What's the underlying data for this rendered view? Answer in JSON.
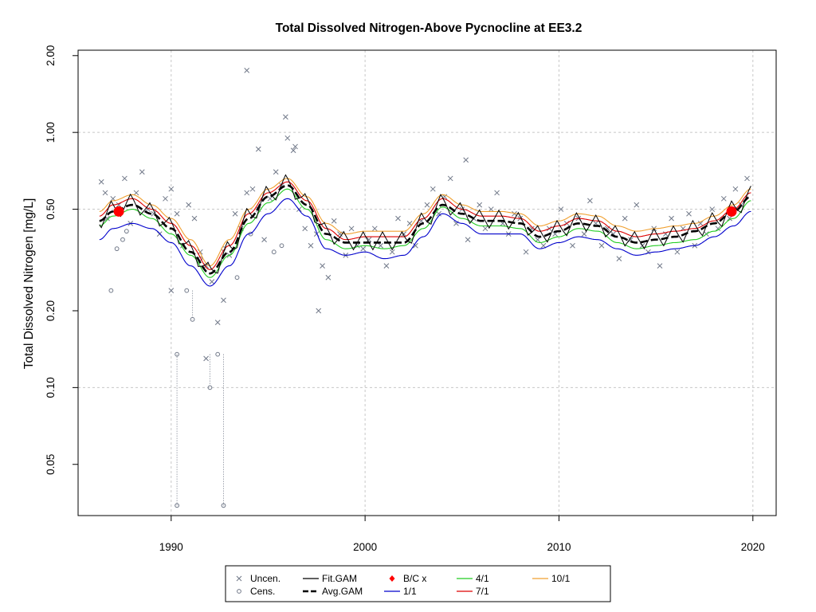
{
  "chart_data": {
    "type": "line",
    "title": "Total Dissolved Nitrogen-Above Pycnocline at EE3.2",
    "ylabel": "Total Dissolved Nitrogen [mg/L]",
    "xlabel": "",
    "y_scale": "log",
    "xlim": [
      1985.2,
      2021.2
    ],
    "ylim": [
      0.0315,
      2.1
    ],
    "x_ticks": [
      1990,
      2000,
      2010,
      2020
    ],
    "x_tick_labels": [
      "1990",
      "2000",
      "2010",
      "2020"
    ],
    "y_ticks": [
      2.0,
      1.0,
      0.5,
      0.2,
      0.1,
      0.05
    ],
    "y_tick_labels": [
      "2.00",
      "1.00",
      "0.50",
      "0.20",
      "0.10",
      "0.05"
    ],
    "grid": true,
    "legend_position": "bottom",
    "legend": [
      {
        "label": "Uncen.",
        "kind": "cross",
        "color": "#707888"
      },
      {
        "label": "Cens.",
        "kind": "circle",
        "color": "#707888"
      },
      {
        "label": "Fit.GAM",
        "kind": "line",
        "color": "#000000"
      },
      {
        "label": "Avg.GAM",
        "kind": "dash",
        "color": "#000000"
      },
      {
        "label": "B/C x",
        "kind": "diamond",
        "color": "#ff0000"
      },
      {
        "label": "1/1",
        "kind": "line",
        "color": "#0000cc"
      },
      {
        "label": "4/1",
        "kind": "line",
        "color": "#22cc22"
      },
      {
        "label": "7/1",
        "kind": "line",
        "color": "#dd0000"
      },
      {
        "label": "10/1",
        "kind": "line",
        "color": "#f0a030"
      }
    ],
    "series": [
      {
        "name": "Avg.GAM",
        "color": "#000000",
        "style": "dashed",
        "x": [
          1986.3,
          1987.0,
          1988.0,
          1989.0,
          1990.0,
          1991.0,
          1992.0,
          1993.0,
          1994.0,
          1995.0,
          1996.0,
          1997.0,
          1998.0,
          1999.0,
          2000.0,
          2001.0,
          2002.0,
          2003.0,
          2004.0,
          2005.0,
          2006.0,
          2007.0,
          2008.0,
          2009.0,
          2010.0,
          2011.0,
          2012.0,
          2013.0,
          2014.0,
          2015.0,
          2016.0,
          2017.0,
          2018.0,
          2019.0,
          2019.9
        ],
        "y": [
          0.45,
          0.49,
          0.52,
          0.48,
          0.42,
          0.34,
          0.28,
          0.34,
          0.46,
          0.56,
          0.62,
          0.52,
          0.4,
          0.37,
          0.37,
          0.37,
          0.37,
          0.44,
          0.52,
          0.48,
          0.45,
          0.45,
          0.44,
          0.39,
          0.41,
          0.44,
          0.43,
          0.39,
          0.37,
          0.38,
          0.39,
          0.41,
          0.44,
          0.49,
          0.56
        ]
      },
      {
        "name": "1/1",
        "color": "#0000cc",
        "style": "solid",
        "x": [
          1986.3,
          1987.0,
          1988.0,
          1989.0,
          1990.0,
          1991.0,
          1992.0,
          1993.0,
          1994.0,
          1995.0,
          1996.0,
          1997.0,
          1998.0,
          1999.0,
          2000.0,
          2001.0,
          2002.0,
          2003.0,
          2004.0,
          2005.0,
          2006.0,
          2007.0,
          2008.0,
          2009.0,
          2010.0,
          2011.0,
          2012.0,
          2013.0,
          2014.0,
          2015.0,
          2016.0,
          2017.0,
          2018.0,
          2019.0,
          2019.9
        ],
        "y": [
          0.38,
          0.42,
          0.44,
          0.42,
          0.37,
          0.3,
          0.25,
          0.3,
          0.4,
          0.48,
          0.55,
          0.47,
          0.35,
          0.33,
          0.34,
          0.32,
          0.33,
          0.39,
          0.48,
          0.44,
          0.4,
          0.4,
          0.4,
          0.35,
          0.37,
          0.39,
          0.38,
          0.35,
          0.33,
          0.34,
          0.35,
          0.36,
          0.39,
          0.43,
          0.49
        ]
      },
      {
        "name": "4/1",
        "color": "#22cc22",
        "style": "solid",
        "x": [
          1986.3,
          1987.0,
          1988.0,
          1989.0,
          1990.0,
          1991.0,
          1992.0,
          1993.0,
          1994.0,
          1995.0,
          1996.0,
          1997.0,
          1998.0,
          1999.0,
          2000.0,
          2001.0,
          2002.0,
          2003.0,
          2004.0,
          2005.0,
          2006.0,
          2007.0,
          2008.0,
          2009.0,
          2010.0,
          2011.0,
          2012.0,
          2013.0,
          2014.0,
          2015.0,
          2016.0,
          2017.0,
          2018.0,
          2019.0,
          2019.9
        ],
        "y": [
          0.43,
          0.47,
          0.5,
          0.46,
          0.4,
          0.33,
          0.27,
          0.33,
          0.44,
          0.53,
          0.6,
          0.5,
          0.38,
          0.35,
          0.36,
          0.35,
          0.36,
          0.42,
          0.51,
          0.46,
          0.43,
          0.43,
          0.42,
          0.37,
          0.39,
          0.42,
          0.41,
          0.37,
          0.35,
          0.36,
          0.37,
          0.38,
          0.41,
          0.46,
          0.54
        ]
      },
      {
        "name": "7/1",
        "color": "#dd0000",
        "style": "solid",
        "x": [
          1986.3,
          1987.0,
          1988.0,
          1989.0,
          1990.0,
          1991.0,
          1992.0,
          1993.0,
          1994.0,
          1995.0,
          1996.0,
          1997.0,
          1998.0,
          1999.0,
          2000.0,
          2001.0,
          2002.0,
          2003.0,
          2004.0,
          2005.0,
          2006.0,
          2007.0,
          2008.0,
          2009.0,
          2010.0,
          2011.0,
          2012.0,
          2013.0,
          2014.0,
          2015.0,
          2016.0,
          2017.0,
          2018.0,
          2019.0,
          2019.9
        ],
        "y": [
          0.47,
          0.52,
          0.55,
          0.5,
          0.44,
          0.36,
          0.29,
          0.36,
          0.48,
          0.58,
          0.64,
          0.54,
          0.42,
          0.38,
          0.39,
          0.39,
          0.39,
          0.46,
          0.55,
          0.5,
          0.47,
          0.47,
          0.46,
          0.41,
          0.43,
          0.46,
          0.45,
          0.41,
          0.39,
          0.4,
          0.41,
          0.42,
          0.45,
          0.5,
          0.58
        ]
      },
      {
        "name": "10/1",
        "color": "#f0a030",
        "style": "solid",
        "x": [
          1986.3,
          1987.0,
          1988.0,
          1989.0,
          1990.0,
          1991.0,
          1992.0,
          1993.0,
          1994.0,
          1995.0,
          1996.0,
          1997.0,
          1998.0,
          1999.0,
          2000.0,
          2001.0,
          2002.0,
          2003.0,
          2004.0,
          2005.0,
          2006.0,
          2007.0,
          2008.0,
          2009.0,
          2010.0,
          2011.0,
          2012.0,
          2013.0,
          2014.0,
          2015.0,
          2016.0,
          2017.0,
          2018.0,
          2019.0,
          2019.9
        ],
        "y": [
          0.49,
          0.54,
          0.57,
          0.52,
          0.46,
          0.38,
          0.3,
          0.38,
          0.5,
          0.6,
          0.66,
          0.56,
          0.44,
          0.4,
          0.41,
          0.41,
          0.41,
          0.48,
          0.57,
          0.52,
          0.49,
          0.49,
          0.48,
          0.43,
          0.45,
          0.48,
          0.47,
          0.43,
          0.41,
          0.42,
          0.43,
          0.44,
          0.47,
          0.52,
          0.6
        ]
      }
    ],
    "fit_gam": {
      "name": "Fit.GAM",
      "color": "#000000",
      "seasonal_amplitude_log10": 0.07
    },
    "uncensored": {
      "marker": "cross",
      "color": "#707888",
      "x": [
        1986.4,
        1986.7,
        1987.0,
        1987.3,
        1987.6,
        1987.9,
        1988.2,
        1988.5,
        1988.8,
        1989.1,
        1989.4,
        1989.7,
        1990.0,
        1990.3,
        1990.6,
        1990.9,
        1991.2,
        1991.5,
        1991.8,
        1992.1,
        1992.4,
        1992.7,
        1993.0,
        1993.3,
        1993.6,
        1993.9,
        1994.2,
        1994.5,
        1994.8,
        1995.1,
        1995.4,
        1995.7,
        1996.0,
        1996.3,
        1996.6,
        1996.9,
        1997.2,
        1997.5,
        1997.8,
        1998.1,
        1998.4,
        1998.7,
        1999.0,
        1999.3,
        1999.6,
        1999.9,
        2000.2,
        2000.5,
        2000.8,
        2001.1,
        2001.4,
        2001.7,
        2002.0,
        2002.3,
        2002.6,
        2002.9,
        2003.2,
        2003.5,
        2003.8,
        2004.1,
        2004.4,
        2004.7,
        2005.0,
        2005.3,
        2005.6,
        2005.9,
        2006.2,
        2006.5,
        2006.8,
        2007.1,
        2007.4,
        2007.7,
        2008.0,
        2008.3,
        2008.6,
        2008.9,
        2009.2,
        2009.5,
        2009.8,
        2010.1,
        2010.4,
        2010.7,
        2011.0,
        2011.3,
        2011.6,
        2011.9,
        2012.2,
        2012.5,
        2012.8,
        2013.1,
        2013.4,
        2013.7,
        2014.0,
        2014.3,
        2014.6,
        2014.9,
        2015.2,
        2015.5,
        2015.8,
        2016.1,
        2016.4,
        2016.7,
        2017.0,
        2017.3,
        2017.6,
        2017.9,
        2018.2,
        2018.5,
        2018.8,
        2019.1,
        2019.4,
        2019.7,
        1993.9,
        1995.9,
        1996.4,
        1991.8,
        1990.0,
        1994.5,
        1997.6,
        1986.6,
        2005.2
      ],
      "y": [
        0.64,
        0.46,
        0.55,
        0.52,
        0.66,
        0.44,
        0.58,
        0.7,
        0.5,
        0.48,
        0.4,
        0.55,
        0.6,
        0.48,
        0.36,
        0.52,
        0.46,
        0.34,
        0.3,
        0.26,
        0.18,
        0.22,
        0.33,
        0.48,
        0.42,
        0.58,
        0.6,
        0.5,
        0.38,
        0.55,
        0.7,
        0.62,
        0.95,
        0.85,
        0.5,
        0.42,
        0.36,
        0.4,
        0.3,
        0.27,
        0.45,
        0.4,
        0.33,
        0.42,
        0.36,
        0.35,
        0.38,
        0.42,
        0.36,
        0.3,
        0.34,
        0.46,
        0.4,
        0.44,
        0.36,
        0.45,
        0.52,
        0.6,
        0.48,
        0.56,
        0.66,
        0.44,
        0.5,
        0.38,
        0.46,
        0.52,
        0.42,
        0.5,
        0.58,
        0.44,
        0.4,
        0.48,
        0.46,
        0.34,
        0.42,
        0.38,
        0.36,
        0.42,
        0.4,
        0.5,
        0.44,
        0.36,
        0.46,
        0.4,
        0.54,
        0.44,
        0.36,
        0.42,
        0.4,
        0.32,
        0.46,
        0.38,
        0.52,
        0.36,
        0.34,
        0.42,
        0.3,
        0.4,
        0.46,
        0.34,
        0.42,
        0.48,
        0.36,
        0.44,
        0.4,
        0.5,
        0.42,
        0.55,
        0.46,
        0.6,
        0.52,
        0.66,
        1.75,
        1.15,
        0.88,
        0.13,
        0.24,
        0.86,
        0.2,
        0.58,
        0.78
      ]
    },
    "censored": {
      "marker": "circle",
      "color": "#707888",
      "x": [
        1986.9,
        1987.2,
        1987.5,
        1987.7,
        1990.3,
        1990.8,
        1991.1,
        1991.5,
        1992.0,
        1992.4,
        1992.7,
        1993.4,
        1994.1,
        1995.3,
        1995.7
      ],
      "y": [
        0.24,
        0.35,
        0.38,
        0.41,
        0.135,
        0.24,
        0.185,
        0.32,
        0.1,
        0.135,
        0.35,
        0.27,
        0.4,
        0.34,
        0.36
      ],
      "lower_limit_x": [
        1990.3,
        1992.7
      ],
      "lower_limit_y": [
        0.0345,
        0.0345
      ]
    },
    "bc_points": {
      "name": "B/C x",
      "marker": "dot",
      "color": "#ff0000",
      "x": [
        1987.3,
        2018.9
      ],
      "y": [
        0.49,
        0.49
      ]
    }
  }
}
